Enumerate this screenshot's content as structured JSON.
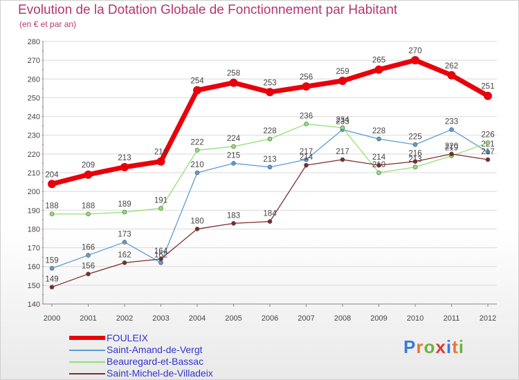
{
  "title": "Evolution de la Dotation Globale de Fonctionnement par Habitant",
  "subtitle": "(en € et par an)",
  "logo": {
    "text": "Proxiti",
    "letters": [
      "P",
      "r",
      "o",
      "x",
      "i",
      "t",
      "i"
    ],
    "colors": [
      "#3a7bd5",
      "#e8772e",
      "#6cb33f",
      "#d93b3b",
      "#3a7bd5",
      "#e8772e",
      "#6cb33f"
    ]
  },
  "chart_data": {
    "type": "line",
    "title": "Evolution de la Dotation Globale de Fonctionnement par Habitant",
    "xlabel": "",
    "ylabel": "(en € et par an)",
    "ylim": [
      140,
      280
    ],
    "yticks": [
      140,
      150,
      160,
      170,
      180,
      190,
      200,
      210,
      220,
      230,
      240,
      250,
      260,
      270,
      280
    ],
    "x": [
      "2000",
      "2001",
      "2002",
      "2003",
      "2004",
      "2005",
      "2006",
      "2007",
      "2008",
      "2009",
      "2010",
      "2011",
      "2012"
    ],
    "series": [
      {
        "name": "FOULEIX",
        "color": "#e8000b",
        "values": [
          204,
          209,
          213,
          216,
          254,
          258,
          253,
          256,
          259,
          265,
          270,
          262,
          251
        ]
      },
      {
        "name": "Saint-Amand-de-Vergt",
        "color": "#5b9bd5",
        "values": [
          159,
          166,
          173,
          162,
          210,
          215,
          213,
          217,
          233,
          228,
          225,
          233,
          221
        ]
      },
      {
        "name": "Beauregard-et-Bassac",
        "color": "#90e070",
        "values": [
          188,
          188,
          189,
          191,
          222,
          224,
          228,
          236,
          234,
          210,
          213,
          219,
          226
        ]
      },
      {
        "name": "Saint-Michel-de-Villadeix",
        "color": "#7b2c2c",
        "values": [
          149,
          156,
          162,
          164,
          180,
          183,
          184,
          214,
          217,
          214,
          216,
          220,
          217
        ]
      }
    ]
  }
}
